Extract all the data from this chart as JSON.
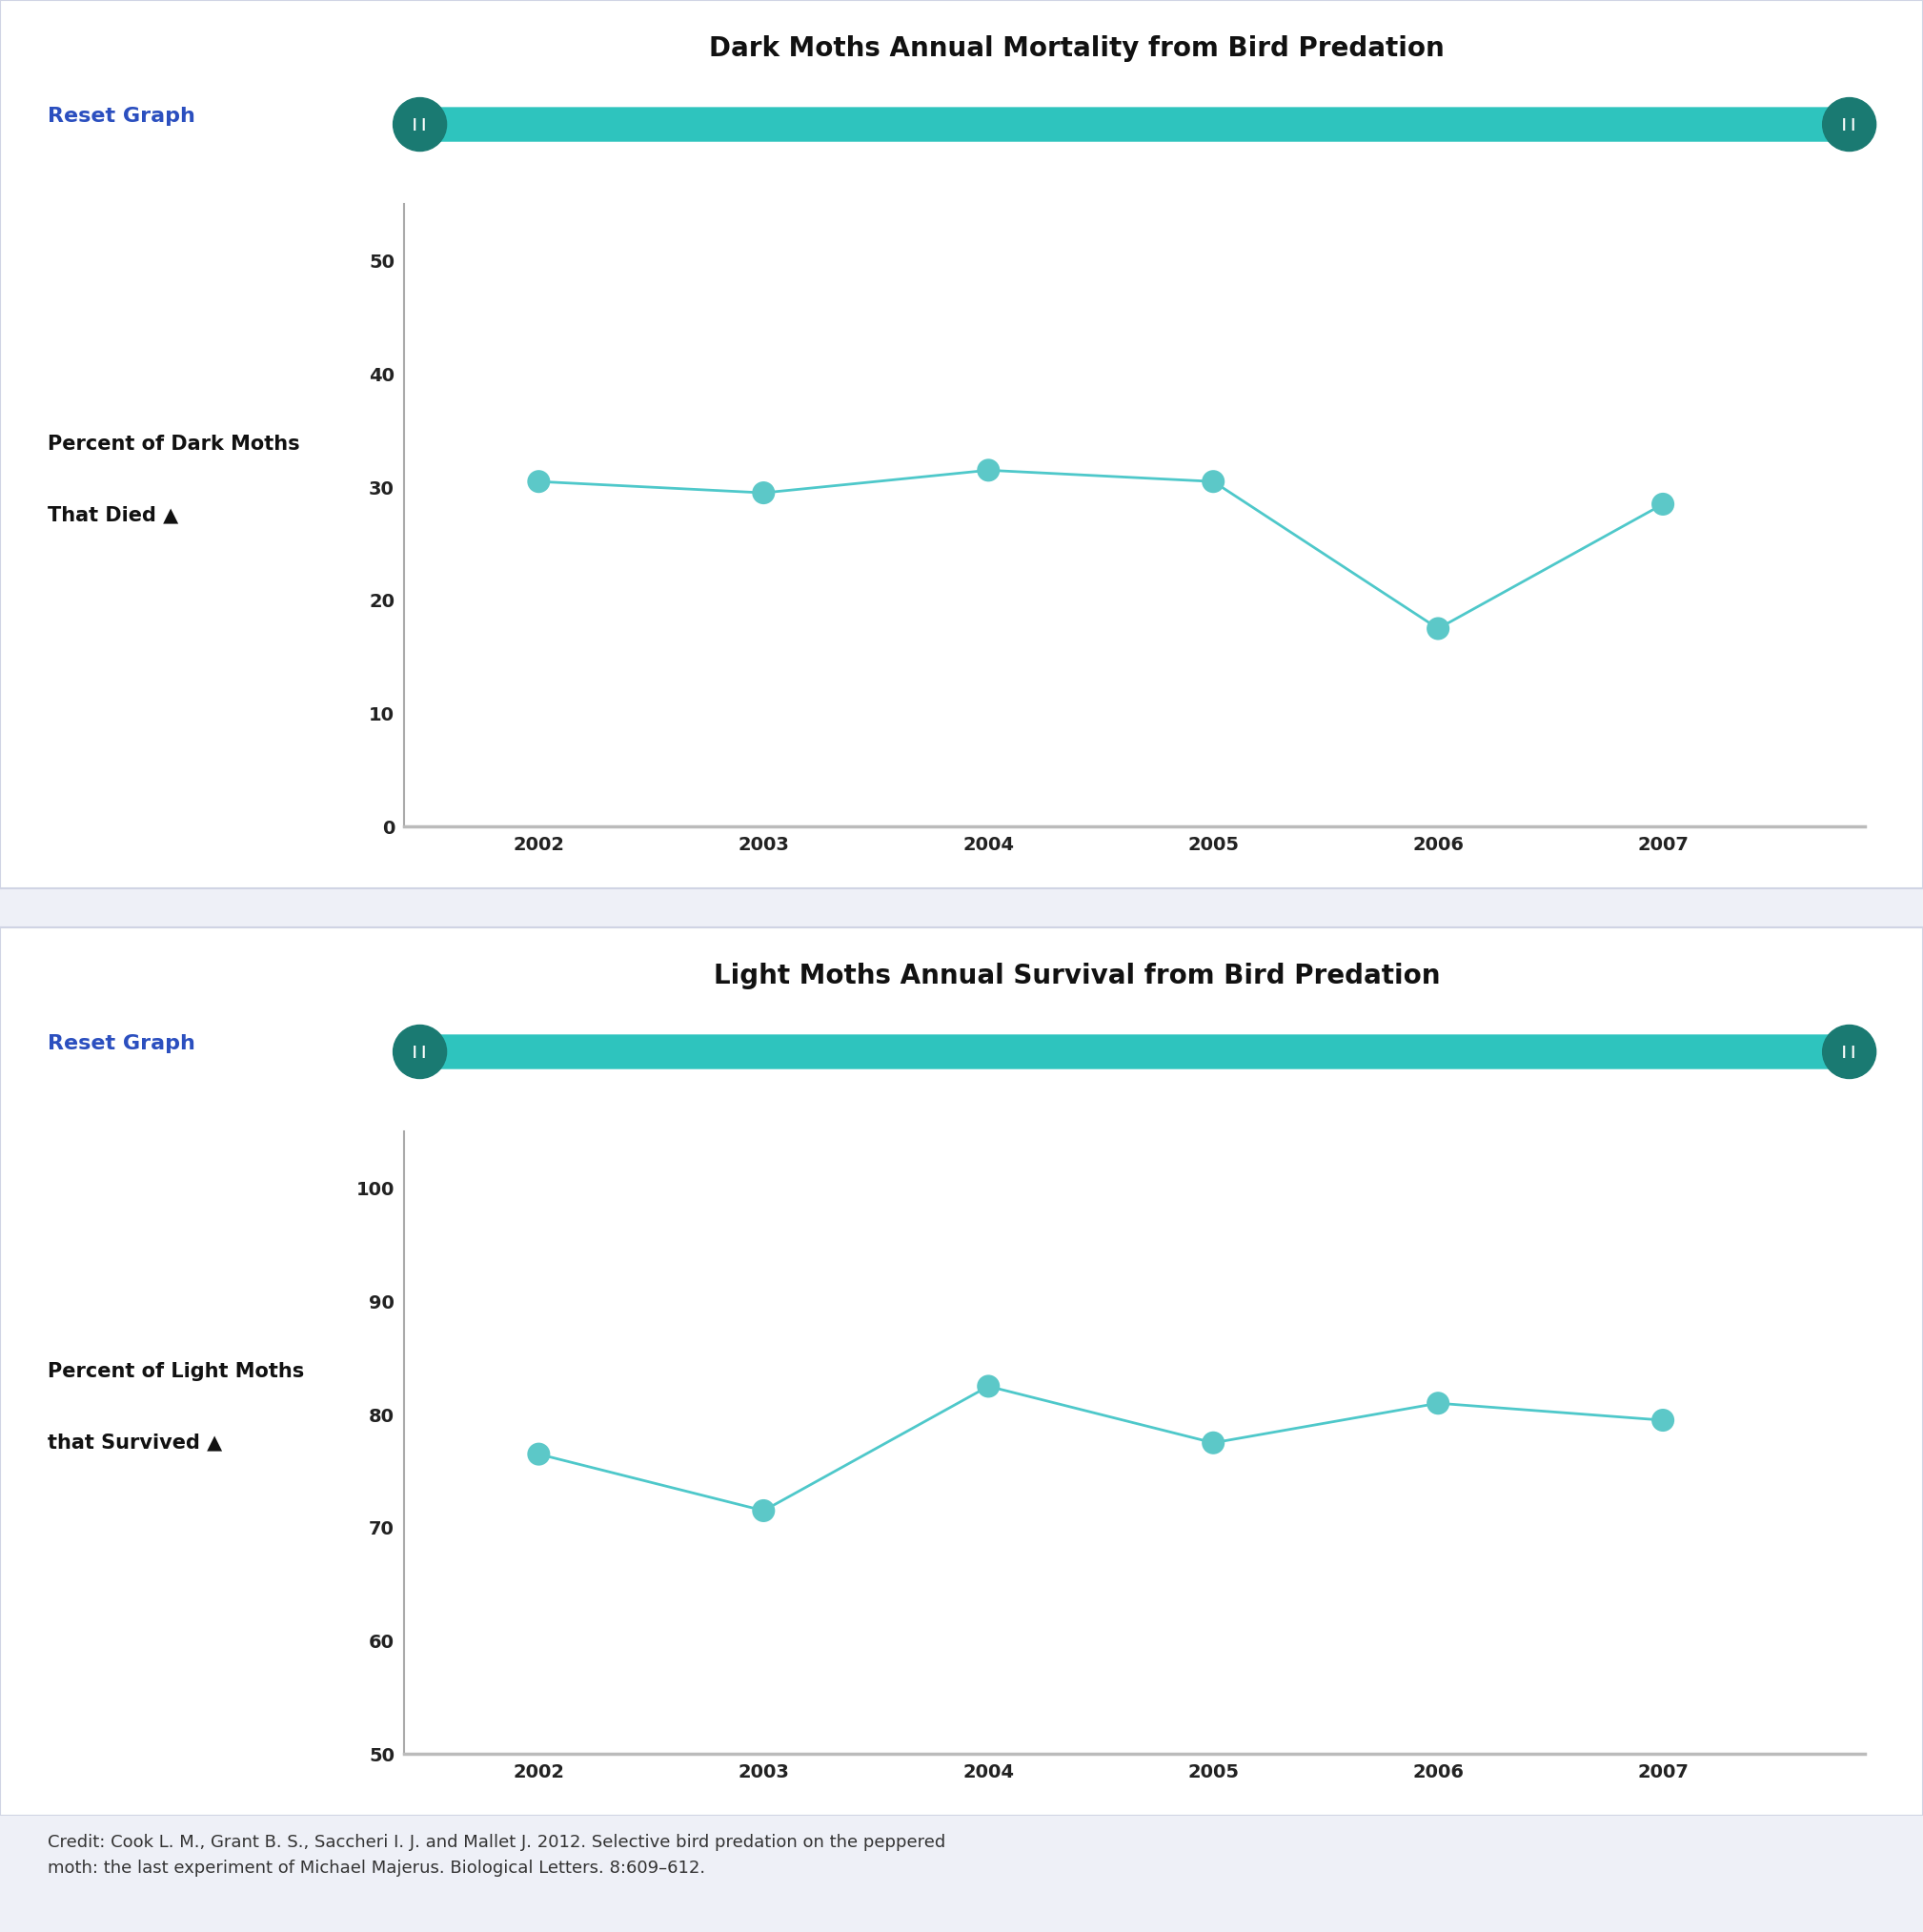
{
  "chart1": {
    "title": "Dark Moths Annual Mortality from Bird Predation",
    "ylabel_line1": "Percent of Dark Moths",
    "ylabel_line2": "That Died ▲",
    "years": [
      2002,
      2003,
      2004,
      2005,
      2006,
      2007
    ],
    "values": [
      30.5,
      29.5,
      31.5,
      30.5,
      17.5,
      28.5
    ],
    "ylim": [
      0,
      55
    ],
    "yticks": [
      0,
      10,
      20,
      30,
      40,
      50
    ],
    "reset_label": "Reset Graph"
  },
  "chart2": {
    "title": "Light Moths Annual Survival from Bird Predation",
    "ylabel_line1": "Percent of Light Moths",
    "ylabel_line2": "that Survived ▲",
    "years": [
      2002,
      2003,
      2004,
      2005,
      2006,
      2007
    ],
    "values": [
      76.5,
      71.5,
      82.5,
      77.5,
      81.0,
      79.5
    ],
    "ylim": [
      50,
      105
    ],
    "yticks": [
      50,
      60,
      70,
      80,
      90,
      100
    ],
    "reset_label": "Reset Graph"
  },
  "line_color": "#4EC8CA",
  "marker_color": "#5CC8C8",
  "slider_bar_color": "#2EC4BE",
  "slider_end_color": "#1A7A72",
  "reset_color": "#2B4FBF",
  "title_color": "#111111",
  "ylabel_color": "#111111",
  "tick_color": "#222222",
  "bg_color": "#ffffff",
  "outer_bg": "#eef0f7",
  "panel_border": "#d0d4e4",
  "credit_text": "Credit: Cook L. M., Grant B. S., Saccheri I. J. and Mallet J. 2012. Selective bird predation on the peppered\nmoth: the last experiment of Michael Majerus. Biological Letters. 8:609–612."
}
